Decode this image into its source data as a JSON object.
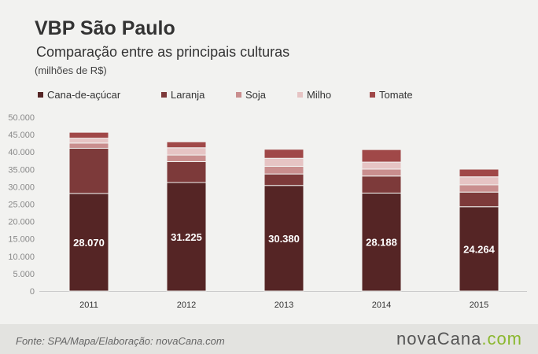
{
  "header": {
    "title": "VBP São Paulo",
    "subtitle": "Comparação entre as principais culturas",
    "unit": "(milhões de R$)"
  },
  "footer": {
    "source": "Fonte: SPA/Mapa/Elaboração: novaCana.com",
    "logo_main": "novaCana",
    "logo_dot": ".",
    "logo_com": "com"
  },
  "chart_data": {
    "type": "bar",
    "stacked": true,
    "categories": [
      "2011",
      "2012",
      "2013",
      "2014",
      "2015"
    ],
    "series": [
      {
        "name": "Cana-de-açúcar",
        "color": "#552525",
        "values": [
          28070,
          31225,
          30380,
          28188,
          24264
        ]
      },
      {
        "name": "Laranja",
        "color": "#7d3a3a",
        "values": [
          13000,
          6000,
          3300,
          4900,
          4200
        ]
      },
      {
        "name": "Soja",
        "color": "#c98e8e",
        "values": [
          1500,
          1900,
          2200,
          2000,
          2100
        ]
      },
      {
        "name": "Milho",
        "color": "#e6c4c4",
        "values": [
          1400,
          2100,
          2300,
          2000,
          2300
        ]
      },
      {
        "name": "Tomate",
        "color": "#a04848",
        "values": [
          1700,
          1700,
          2600,
          3600,
          2200
        ]
      }
    ],
    "data_labels": [
      "28.070",
      "31.225",
      "30.380",
      "28.188",
      "24.264"
    ],
    "y_ticks": [
      "0",
      "5.000",
      "10.000",
      "15.000",
      "20.000",
      "25.000",
      "30.000",
      "35.000",
      "40.000",
      "45.000",
      "50.000"
    ],
    "ylim": [
      0,
      50000
    ],
    "grid": false,
    "legend_position": "top"
  }
}
